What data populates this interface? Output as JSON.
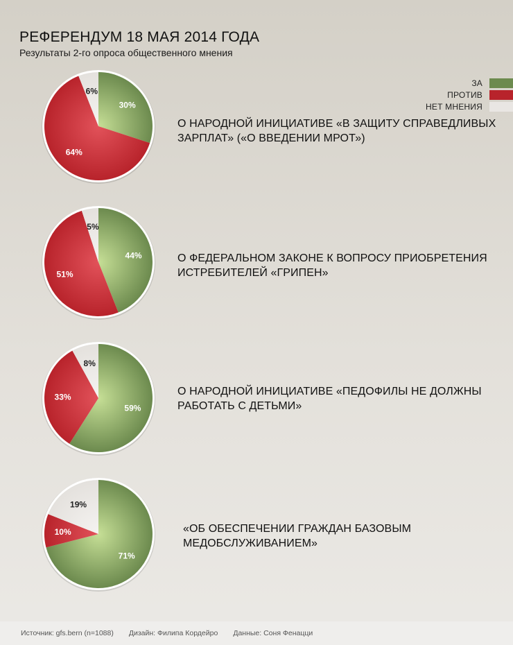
{
  "header": {
    "title": "РЕФЕРЕНДУМ 18 МАЯ 2014 ГОДА",
    "subtitle": "Результаты 2-го опроса общественного мнения"
  },
  "legend": [
    {
      "label": "ЗА",
      "color": "#6c8a4e"
    },
    {
      "label": "ПРОТИВ",
      "color": "#b8232b"
    },
    {
      "label": "НЕТ МНЕНИЯ",
      "color": "#e9e6e3"
    }
  ],
  "chart_data": [
    {
      "type": "pie",
      "title": "О НАРОДНОЙ ИНИЦИАТИВЕ «В ЗАЩИТУ СПРАВЕДЛИВЫХ ЗАРПЛАТ» («О ВВЕДЕНИИ МРОТ»)",
      "slices": [
        {
          "category": "ЗА",
          "value": 30,
          "label": "30%"
        },
        {
          "category": "ПРОТИВ",
          "value": 64,
          "label": "64%"
        },
        {
          "category": "НЕТ МНЕНИЯ",
          "value": 6,
          "label": "6%"
        }
      ]
    },
    {
      "type": "pie",
      "title": "О ФЕДЕРАЛЬНОМ ЗАКОНЕ К ВОПРОСУ ПРИОБРЕТЕНИЯ ИСТРЕБИТЕЛЕЙ «ГРИПЕН»",
      "slices": [
        {
          "category": "ЗА",
          "value": 44,
          "label": "44%"
        },
        {
          "category": "ПРОТИВ",
          "value": 51,
          "label": "51%"
        },
        {
          "category": "НЕТ МНЕНИЯ",
          "value": 5,
          "label": "5%"
        }
      ]
    },
    {
      "type": "pie",
      "title": "О НАРОДНОЙ ИНИЦИАТИВЕ «ПЕДОФИЛЫ НЕ ДОЛЖНЫ РАБОТАТЬ С ДЕТЬМИ»",
      "slices": [
        {
          "category": "ЗА",
          "value": 59,
          "label": "59%"
        },
        {
          "category": "ПРОТИВ",
          "value": 33,
          "label": "33%"
        },
        {
          "category": "НЕТ МНЕНИЯ",
          "value": 8,
          "label": "8%"
        }
      ]
    },
    {
      "type": "pie",
      "title": "«ОБ ОБЕСПЕЧЕНИИ ГРАЖДАН БАЗОВЫМ МЕДОБСЛУЖИВАНИЕМ»",
      "slices": [
        {
          "category": "ЗА",
          "value": 71,
          "label": "71%"
        },
        {
          "category": "ПРОТИВ",
          "value": 10,
          "label": "10%"
        },
        {
          "category": "НЕТ МНЕНИЯ",
          "value": 19,
          "label": "19%"
        }
      ]
    }
  ],
  "footer": {
    "source": "Источник: gfs.bern (n=1088)",
    "design": "Дизайн: Филипа Кордейро",
    "data": "Данные: Соня Фенацци"
  }
}
